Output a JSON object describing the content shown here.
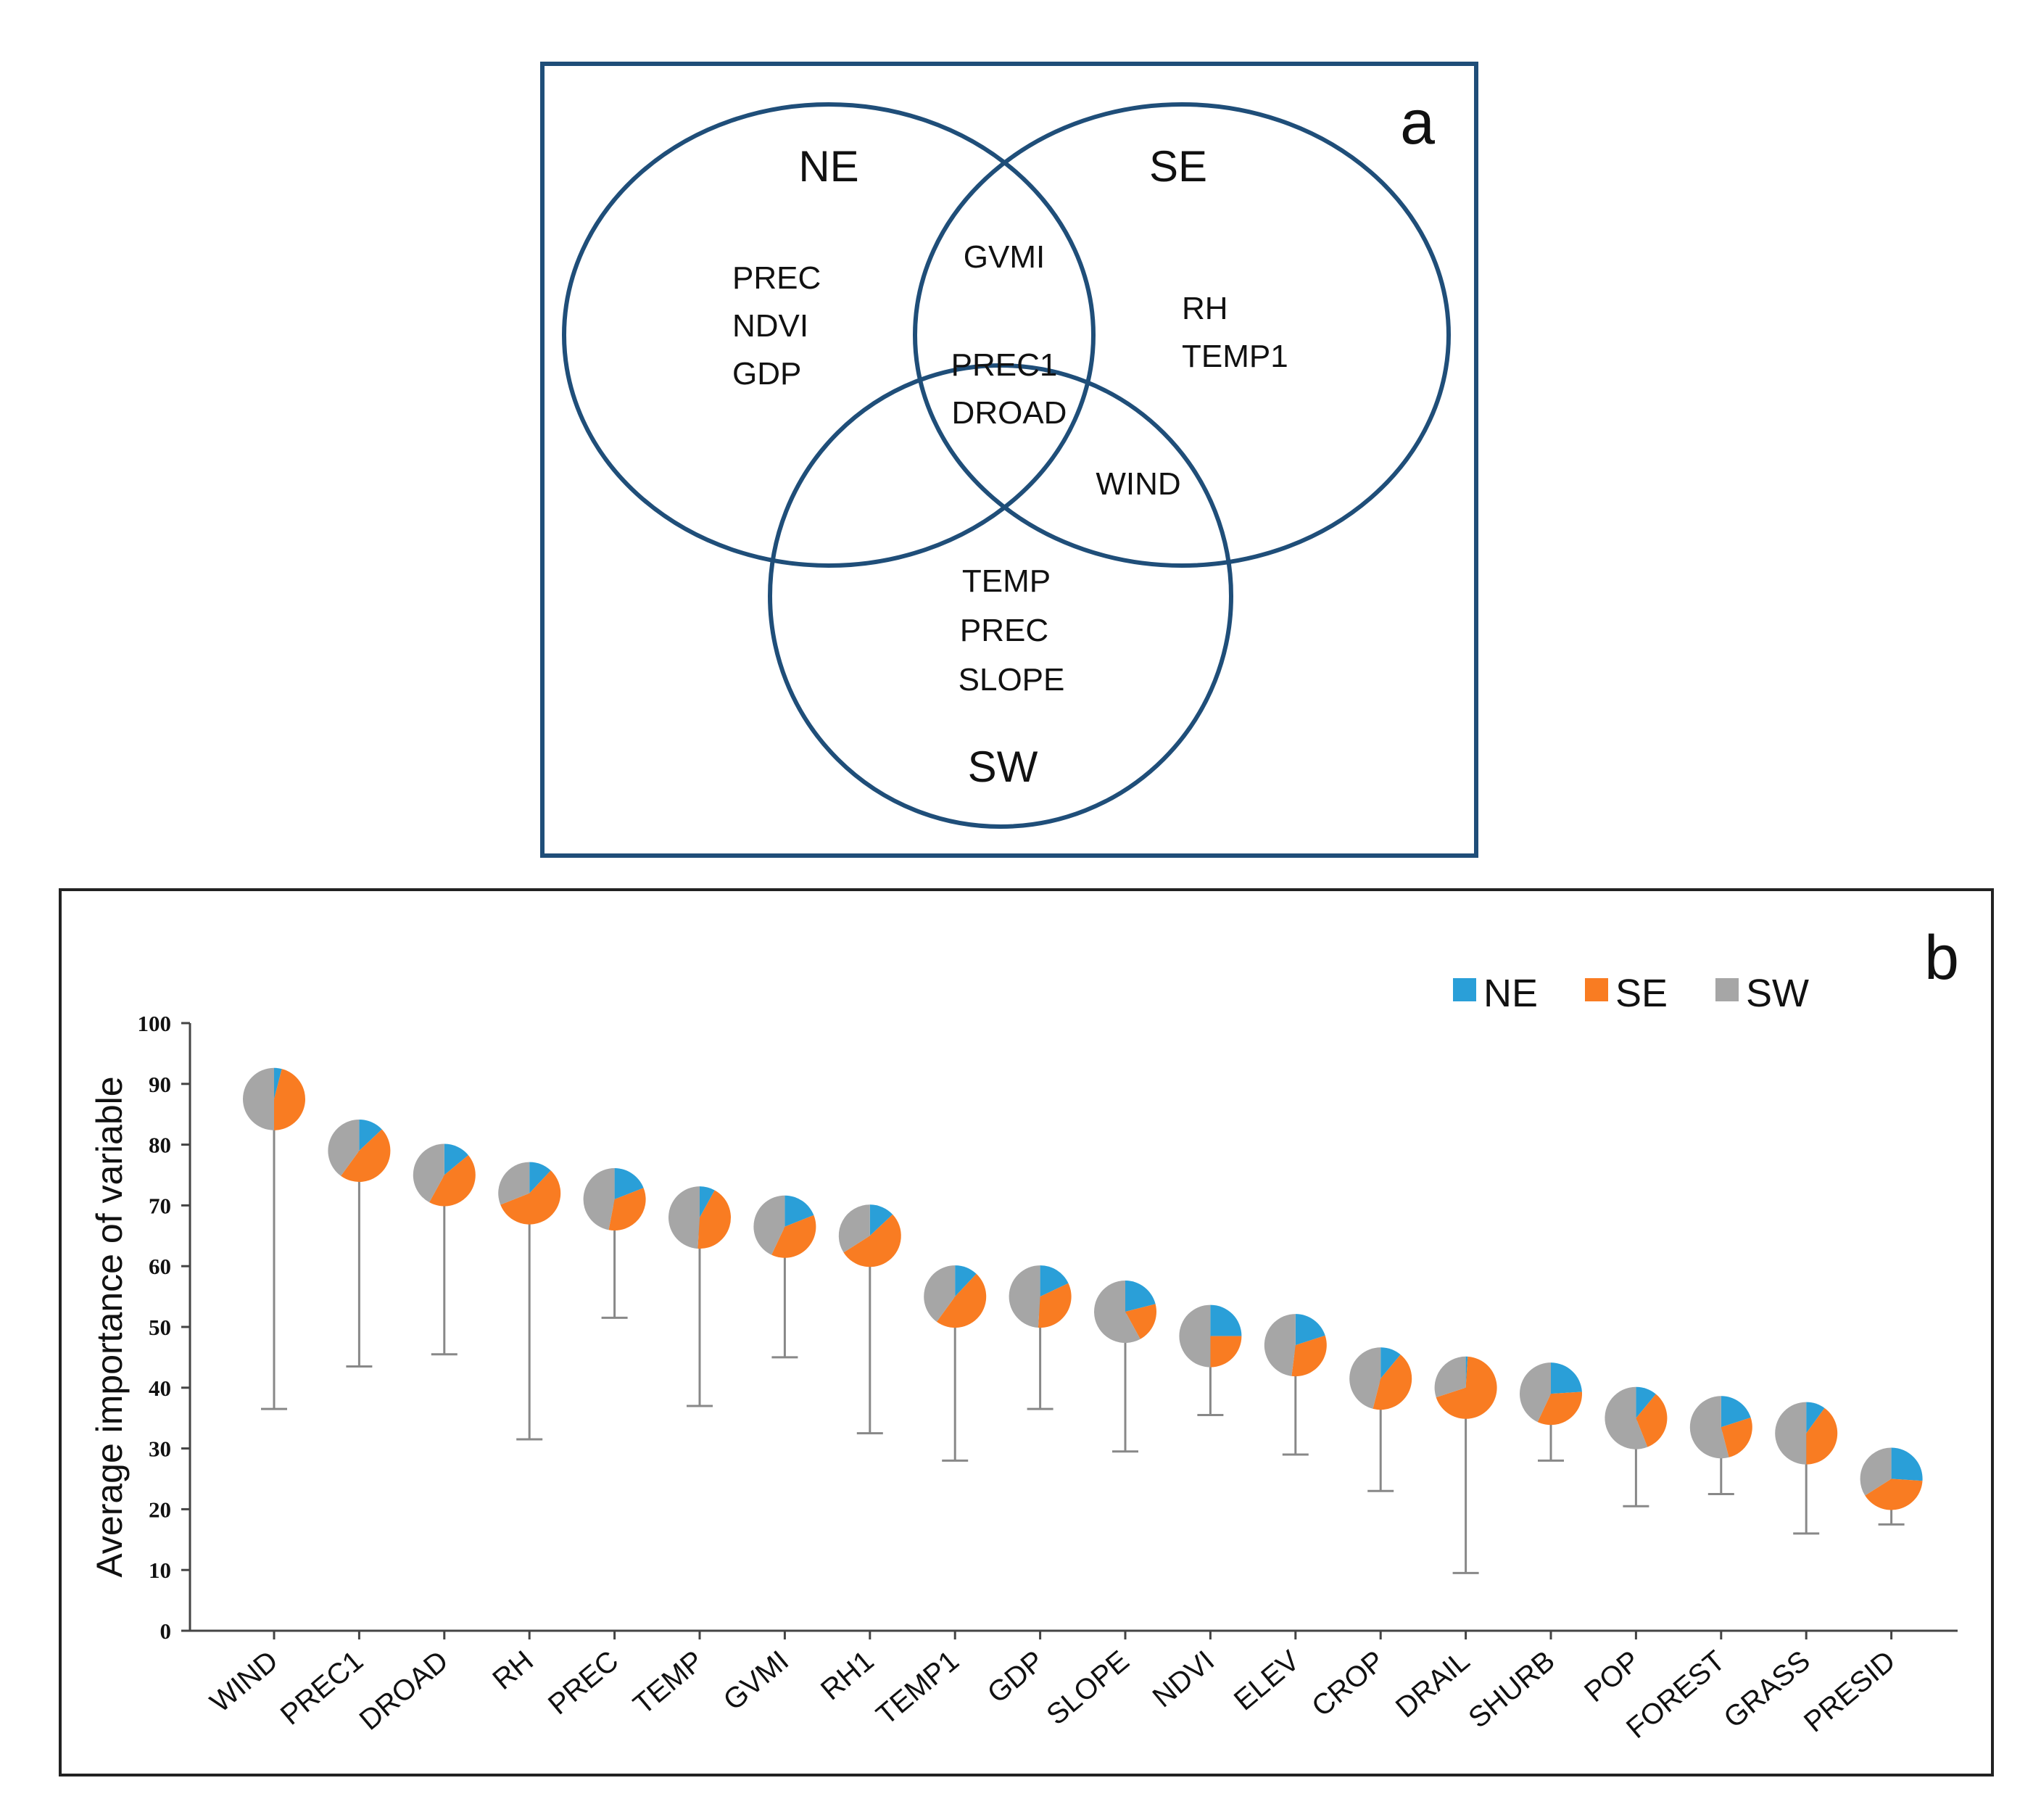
{
  "colors": {
    "venn_stroke": "#1f4e79",
    "ne": "#2a9fd8",
    "se": "#f97c22",
    "sw": "#a6a6a6",
    "whisker": "#888888",
    "axis": "#444444"
  },
  "panel_a": {
    "label": "a",
    "sets": {
      "ne": "NE",
      "se": "SE",
      "sw": "SW"
    },
    "regions": {
      "ne_only": [
        "PREC",
        "NDVI",
        "GDP"
      ],
      "ne_se": [
        "GVMI"
      ],
      "se_only": [
        "RH",
        "TEMP1"
      ],
      "all_three": [
        "PREC1",
        "DROAD"
      ],
      "se_sw": [
        "WIND"
      ],
      "sw_only": [
        "TEMP",
        "PREC",
        "SLOPE"
      ]
    }
  },
  "panel_b": {
    "label": "b"
  },
  "chart_data": {
    "type": "scatter",
    "subtype": "pie-marker range plot",
    "title": "",
    "xlabel": "",
    "ylabel": "Average importance of variable",
    "ylim": [
      0,
      100
    ],
    "yticks": [
      "0",
      "10",
      "20",
      "30",
      "40",
      "50",
      "60",
      "70",
      "80",
      "90",
      "100"
    ],
    "legend": [
      "NE",
      "SE",
      "SW"
    ],
    "legend_position": "top-right",
    "categories": [
      "WIND",
      "PREC1",
      "DROAD",
      "RH",
      "PREC",
      "TEMP",
      "GVMI",
      "RH1",
      "TEMP1",
      "GDP",
      "SLOPE",
      "NDVI",
      "ELEV",
      "CROP",
      "DRAIL",
      "SHURB",
      "POP",
      "FOREST",
      "GRASS",
      "PRESID"
    ],
    "average": [
      87.5,
      79,
      75,
      72,
      71,
      68,
      66.5,
      65,
      55,
      55,
      52.5,
      48.5,
      47,
      41.5,
      40,
      39,
      35,
      33.5,
      32.5,
      25
    ],
    "lower": [
      36.5,
      43.5,
      45.5,
      31.5,
      51.5,
      37,
      45,
      32.5,
      28,
      36.5,
      29.5,
      35.5,
      29,
      23,
      9.5,
      28,
      20.5,
      22.5,
      16,
      17.5
    ],
    "series": [
      {
        "name": "NE",
        "values": [
          4,
          13,
          14,
          12,
          19,
          8,
          19,
          13,
          12,
          18,
          21,
          25,
          20,
          11,
          1,
          24,
          11,
          20,
          10,
          26
        ]
      },
      {
        "name": "SE",
        "values": [
          46,
          47,
          44,
          57,
          34,
          43,
          38,
          53,
          48,
          33,
          21,
          25,
          32,
          43,
          69,
          33,
          33,
          26,
          40,
          40
        ]
      },
      {
        "name": "SW",
        "values": [
          50,
          40,
          42,
          31,
          47,
          49,
          43,
          34,
          40,
          49,
          58,
          50,
          48,
          46,
          30,
          43,
          56,
          54,
          50,
          34
        ]
      }
    ]
  }
}
